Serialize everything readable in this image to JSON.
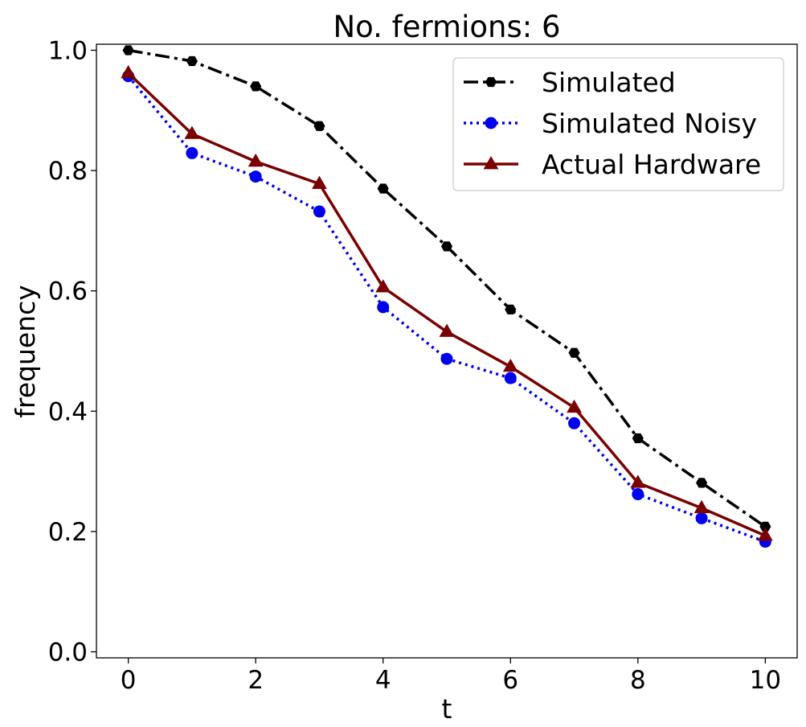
{
  "chart_data": {
    "type": "line",
    "title": "No. fermions: 6",
    "xlabel": "t",
    "ylabel": "frequency",
    "xlim": [
      -0.5,
      10.5
    ],
    "ylim": [
      -0.01,
      1.01
    ],
    "xticks": [
      0,
      2,
      4,
      6,
      8,
      10
    ],
    "xtick_labels": [
      "0",
      "2",
      "4",
      "6",
      "8",
      "10"
    ],
    "yticks": [
      0.0,
      0.2,
      0.4,
      0.6,
      0.8,
      1.0
    ],
    "ytick_labels": [
      "0.0",
      "0.2",
      "0.4",
      "0.6",
      "0.8",
      "1.0"
    ],
    "grid": false,
    "legend_position": "top-right",
    "x": [
      0,
      1,
      2,
      3,
      4,
      5,
      6,
      7,
      8,
      9,
      10
    ],
    "series": [
      {
        "name": "Simulated",
        "color": "#000000",
        "linestyle": "dashdot",
        "marker": "hexagon",
        "values": [
          1.0,
          0.982,
          0.94,
          0.874,
          0.77,
          0.674,
          0.569,
          0.497,
          0.355,
          0.281,
          0.208
        ]
      },
      {
        "name": "Simulated Noisy",
        "color": "#0000ee",
        "linestyle": "dotted",
        "marker": "circle",
        "values": [
          0.957,
          0.829,
          0.79,
          0.732,
          0.573,
          0.487,
          0.455,
          0.38,
          0.262,
          0.222,
          0.183
        ]
      },
      {
        "name": "Actual Hardware",
        "color": "#7a0000",
        "linestyle": "solid",
        "marker": "triangle",
        "values": [
          0.962,
          0.861,
          0.815,
          0.778,
          0.606,
          0.532,
          0.474,
          0.406,
          0.281,
          0.239,
          0.193
        ]
      }
    ]
  }
}
